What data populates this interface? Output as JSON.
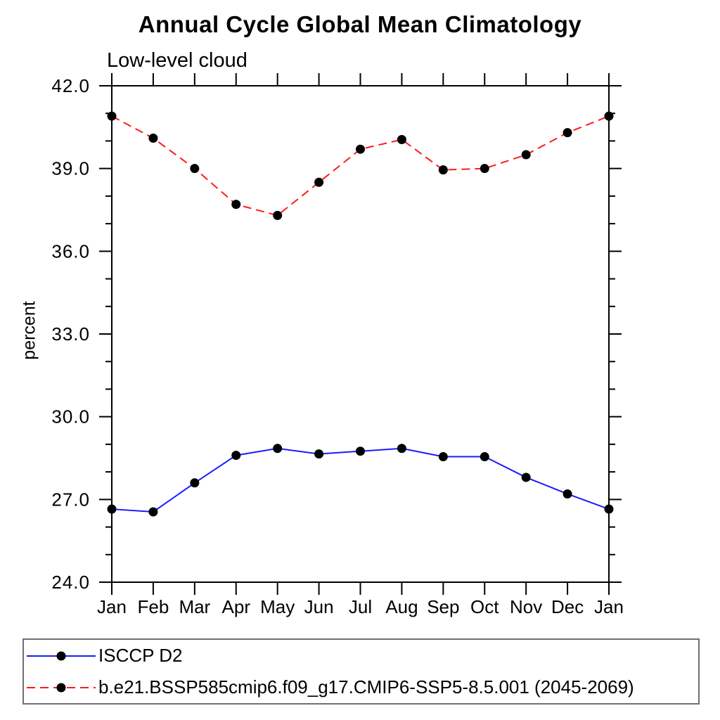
{
  "chart_data": {
    "type": "line",
    "title": "Annual Cycle Global Mean Climatology",
    "subtitle": "Low-level cloud",
    "xlabel": "",
    "ylabel": "percent",
    "categories": [
      "Jan",
      "Feb",
      "Mar",
      "Apr",
      "May",
      "Jun",
      "Jul",
      "Aug",
      "Sep",
      "Oct",
      "Nov",
      "Dec",
      "Jan"
    ],
    "ylim": [
      24.0,
      42.0
    ],
    "y_major_ticks": [
      24.0,
      27.0,
      30.0,
      33.0,
      36.0,
      39.0,
      42.0
    ],
    "y_tick_labels": [
      "24.0",
      "27.0",
      "30.0",
      "33.0",
      "36.0",
      "39.0",
      "42.0"
    ],
    "y_minor_step": 1.0,
    "grid": false,
    "legend_position": "bottom-left-box",
    "marker_color": "#000000",
    "series": [
      {
        "name": "ISCCP D2",
        "color": "#1a1aff",
        "line_style": "solid",
        "marker": "circle",
        "values": [
          26.65,
          26.55,
          27.6,
          28.6,
          28.85,
          28.65,
          28.75,
          28.85,
          28.55,
          28.55,
          27.8,
          27.2,
          26.65
        ]
      },
      {
        "name": "b.e21.BSSP585cmip6.f09_g17.CMIP6-SSP5-8.5.001 (2045-2069)",
        "color": "#ff1a1a",
        "line_style": "dashed",
        "marker": "circle",
        "values": [
          40.9,
          40.1,
          39.0,
          37.7,
          37.3,
          38.5,
          39.7,
          40.05,
          38.95,
          39.0,
          39.5,
          40.3,
          40.9
        ]
      }
    ]
  }
}
